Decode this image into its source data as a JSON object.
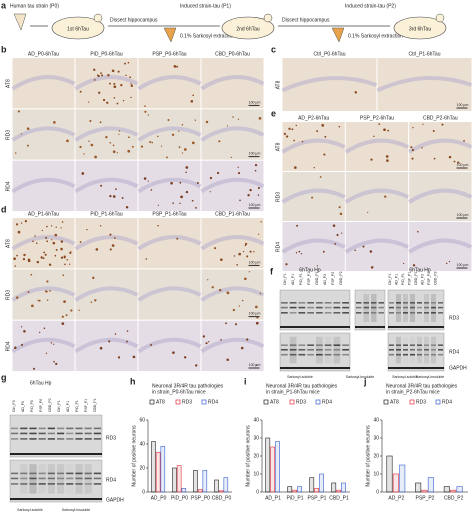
{
  "panel_a": {
    "label": "a",
    "source": "Human tau strain (P0)",
    "mouse1": "1st 6hTau",
    "step1": "Dissect hippocampus",
    "strain1": "Induced strain-tau (P1)",
    "extraction1": "0.1% Sarkosyl extraction",
    "mouse2": "2nd 6hTau",
    "step2": "Dissect hippocampus",
    "strain2": "Induced strain-tau (P2)",
    "extraction2": "0.1% Sarkosyl extraction",
    "mouse3": "3rd 6hTau"
  },
  "panel_b": {
    "label": "b",
    "columns": [
      "AD_P0-6hTau",
      "PiD_P0-6hTau",
      "PSP_P0-6hTau",
      "CBD_P0-6hTau"
    ],
    "rows": [
      "AT8",
      "RD3",
      "RD4"
    ],
    "scale_bar": "100 μm"
  },
  "panel_c": {
    "label": "c",
    "columns": [
      "Ctrl_P0-6hTau",
      "Ctrl_P1-6hTau"
    ],
    "rows": [
      "AT8"
    ],
    "scale_bar": "100 μm"
  },
  "panel_d": {
    "label": "d",
    "columns": [
      "AD_P1-6hTau",
      "PiD_P1-6hTau",
      "PSP_P1-6hTau",
      "CBD_P1-6hTau"
    ],
    "rows": [
      "AT8",
      "RD3",
      "RD4"
    ],
    "scale_bar": "100 μm"
  },
  "panel_e": {
    "label": "e",
    "columns": [
      "AD_P2-6hTau",
      "PSP_P2-6hTau",
      "CBD_P2-6hTau"
    ],
    "rows": [
      "AT8",
      "RD3",
      "RD4"
    ],
    "scale_bar": "100 μm"
  },
  "panel_f": {
    "label": "f",
    "header_left": "6hTau Hp",
    "header_right": "6hTau Hp",
    "lanes": [
      "Ctrl_P1",
      "AD_P1",
      "PiD_P1",
      "PSP_P1",
      "CBD_P1",
      "AD_P2",
      "PSP_P2",
      "CBD_P2"
    ],
    "markers": [
      "RD3",
      "RD4",
      "GAPDH"
    ],
    "footers": [
      "Sarkosyl-soluble",
      "Sarkosyl-insoluble",
      "Sarkosyl-soluble",
      "Sarkosyl-insoluble"
    ]
  },
  "panel_g": {
    "label": "g",
    "header": "6hTau Hp",
    "lanes": [
      "Ctrl_P0",
      "AD_P0",
      "PiD_P0",
      "PSP_P0",
      "CBD_P0",
      "Ctrl_P1",
      "AD_P1",
      "PiD_P1",
      "PSP_P1",
      "CBD_P1"
    ],
    "markers": [
      "RD3",
      "RD4",
      "GAPDH"
    ],
    "footers": [
      "Sarkosyl-soluble",
      "Sarkosyl-insoluble"
    ]
  },
  "chart_data": [
    {
      "type": "bar",
      "label": "h",
      "title": [
        "Neuronal 3R/4R tau pathologies",
        "in strain_P0-6hTau mice"
      ],
      "ylabel": "Number of positive neurons",
      "categories": [
        "AD_P0",
        "PiD_P0",
        "PSP_P0",
        "CBD_P0"
      ],
      "series": [
        {
          "name": "AT8",
          "color": "#222222",
          "values": [
            42,
            20,
            18,
            10
          ]
        },
        {
          "name": "RD3",
          "color": "#e0303a",
          "values": [
            33,
            22,
            2,
            1
          ]
        },
        {
          "name": "RD4",
          "color": "#3a5fd0",
          "values": [
            38,
            3,
            18,
            12
          ]
        }
      ],
      "ylim": [
        0,
        60
      ],
      "yticks": [
        0,
        20,
        40,
        60
      ]
    },
    {
      "type": "bar",
      "label": "i",
      "title": [
        "Neuronal 3R/4R tau pathologies",
        "in strain_P1-6hTau mice"
      ],
      "ylabel": "Number of positive neurons",
      "categories": [
        "AD_P1",
        "PiD_P1",
        "PSP_P1",
        "CBD_P1"
      ],
      "series": [
        {
          "name": "AT8",
          "color": "#222222",
          "values": [
            30,
            3,
            8,
            5
          ]
        },
        {
          "name": "RD3",
          "color": "#e0303a",
          "values": [
            25,
            1,
            2,
            1
          ]
        },
        {
          "name": "RD4",
          "color": "#3a5fd0",
          "values": [
            28,
            3,
            10,
            5
          ]
        }
      ],
      "ylim": [
        0,
        40
      ],
      "yticks": [
        0,
        10,
        20,
        30,
        40
      ]
    },
    {
      "type": "bar",
      "label": "j",
      "title": [
        "Neuronal 3R/4R tau pathologies",
        "in strain_P2-6hTau mice"
      ],
      "ylabel": "Number of positive neurons",
      "categories": [
        "AD_P2",
        "PSP_P2",
        "CBD_P2"
      ],
      "series": [
        {
          "name": "AT8",
          "color": "#222222",
          "values": [
            20,
            5,
            3
          ]
        },
        {
          "name": "RD3",
          "color": "#e0303a",
          "values": [
            10,
            1,
            1
          ]
        },
        {
          "name": "RD4",
          "color": "#3a5fd0",
          "values": [
            15,
            8,
            3
          ]
        }
      ],
      "ylim": [
        0,
        40
      ],
      "yticks": [
        0,
        10,
        20,
        30,
        40
      ]
    }
  ]
}
